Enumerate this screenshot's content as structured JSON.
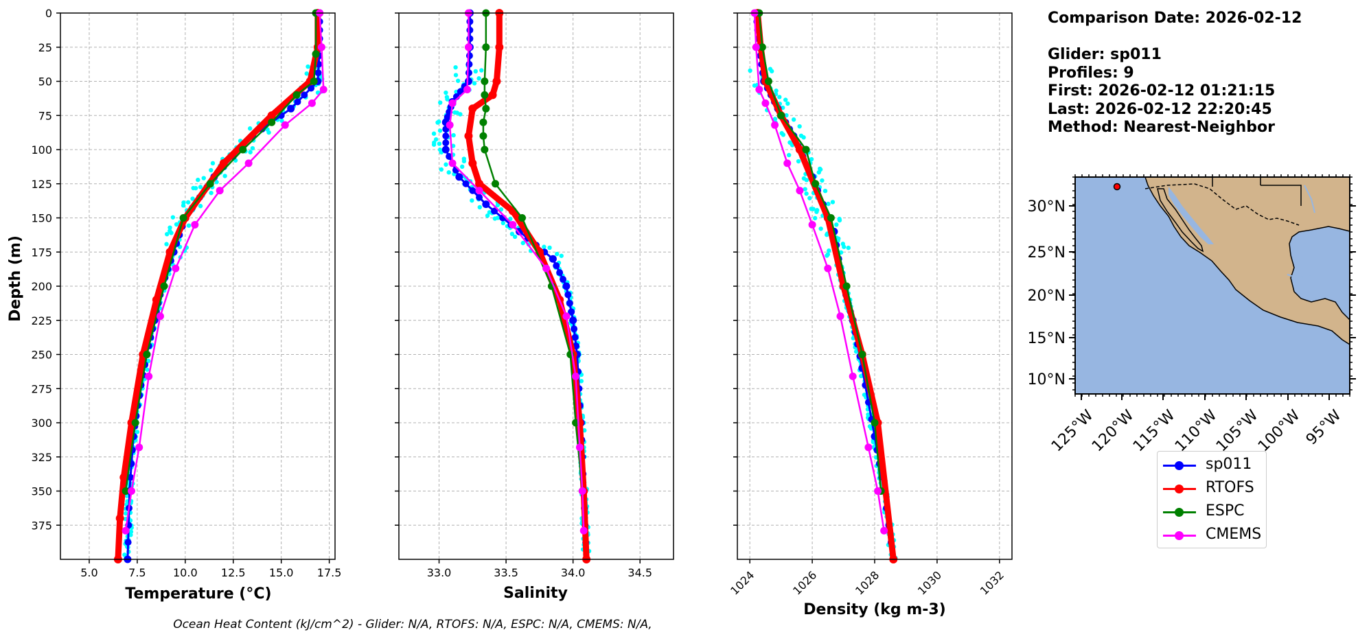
{
  "info": {
    "line1": "Comparison Date: 2026-02-12",
    "line2": "Glider: sp011",
    "line3": "Profiles: 9",
    "line4": "First: 2026-02-12 01:21:15",
    "line5": "Last: 2026-02-12 22:20:45",
    "line6": "Method: Nearest-Neighbor"
  },
  "footer": "Ocean Heat Content (kJ/cm^2) - Glider: N/A,  RTOFS: N/A,  ESPC: N/A,  CMEMS: N/A,",
  "legend": [
    {
      "name": "sp011",
      "color": "#0000ff"
    },
    {
      "name": "RTOFS",
      "color": "#ff0000"
    },
    {
      "name": "ESPC",
      "color": "#008000"
    },
    {
      "name": "CMEMS",
      "color": "#ff00ff"
    }
  ],
  "map": {
    "lat_ticks": [
      "30°N",
      "25°N",
      "20°N",
      "15°N",
      "10°N"
    ],
    "lon_ticks": [
      "125°W",
      "120°W",
      "115°W",
      "110°W",
      "105°W",
      "100°W",
      "95°W"
    ],
    "ocean_color": "#97b6e1",
    "land_color": "#d2b48c",
    "glider_marker_color": "#ff0000"
  },
  "chart_data": [
    {
      "type": "line",
      "xlabel": "Temperature (°C)",
      "ylabel": "Depth (m)",
      "xlim": [
        3.5,
        17.8
      ],
      "ylim": [
        400,
        0
      ],
      "xticks": [
        "5.0",
        "7.5",
        "10.0",
        "12.5",
        "15.0",
        "17.5"
      ],
      "yticks": [
        "0",
        "25",
        "50",
        "75",
        "100",
        "125",
        "150",
        "175",
        "200",
        "225",
        "250",
        "275",
        "300",
        "325",
        "350",
        "375"
      ],
      "grid": true,
      "series": [
        {
          "name": "sp011",
          "color": "#0000ff",
          "x": [
            17.0,
            17.0,
            16.9,
            15.5,
            13.5,
            11.5,
            10.0,
            9.4,
            8.8,
            8.4,
            8.0,
            7.6,
            7.3,
            7.1,
            7.0
          ],
          "y": [
            0,
            25,
            50,
            70,
            90,
            120,
            150,
            175,
            200,
            225,
            250,
            280,
            310,
            350,
            400
          ]
        },
        {
          "name": "RTOFS",
          "color": "#ff0000",
          "x": [
            16.9,
            16.9,
            16.5,
            14.5,
            12.0,
            10.0,
            9.2,
            8.5,
            7.8,
            7.2,
            6.8,
            6.6,
            6.5
          ],
          "y": [
            0,
            25,
            50,
            75,
            110,
            150,
            175,
            210,
            250,
            300,
            340,
            370,
            400
          ]
        },
        {
          "name": "ESPC",
          "color": "#008000",
          "x": [
            16.8,
            16.8,
            16.7,
            15.8,
            14.5,
            13.0,
            11.3,
            9.9,
            8.9,
            8.0,
            7.4,
            6.9
          ],
          "y": [
            0,
            30,
            50,
            60,
            80,
            100,
            125,
            150,
            200,
            250,
            300,
            350
          ]
        },
        {
          "name": "CMEMS",
          "color": "#ff00ff",
          "x": [
            17.0,
            17.1,
            17.2,
            16.6,
            15.2,
            13.3,
            11.8,
            10.5,
            9.5,
            8.7,
            8.1,
            7.6,
            7.2,
            6.9
          ],
          "y": [
            0,
            25,
            56,
            66,
            82,
            110,
            130,
            155,
            187,
            222,
            266,
            318,
            350,
            379
          ]
        }
      ]
    },
    {
      "type": "line",
      "xlabel": "Salinity",
      "ylabel": "",
      "xlim": [
        32.7,
        34.75
      ],
      "ylim": [
        400,
        0
      ],
      "xticks": [
        "33.0",
        "33.5",
        "34.0",
        "34.5"
      ],
      "grid": true,
      "series": [
        {
          "name": "sp011",
          "color": "#0000ff",
          "x": [
            33.23,
            33.23,
            33.22,
            33.1,
            33.05,
            33.05,
            33.15,
            33.35,
            33.6,
            33.85,
            33.95,
            34.0,
            34.03,
            34.06,
            34.08,
            34.1
          ],
          "y": [
            0,
            25,
            50,
            65,
            80,
            100,
            120,
            140,
            160,
            180,
            200,
            225,
            250,
            300,
            350,
            400
          ]
        },
        {
          "name": "RTOFS",
          "color": "#ff0000",
          "x": [
            33.45,
            33.45,
            33.43,
            33.4,
            33.25,
            33.22,
            33.25,
            33.3,
            33.55,
            33.75,
            33.9,
            34.0,
            34.05,
            34.08,
            34.1
          ],
          "y": [
            0,
            25,
            50,
            60,
            70,
            90,
            110,
            125,
            145,
            175,
            210,
            250,
            300,
            350,
            400
          ]
        },
        {
          "name": "ESPC",
          "color": "#008000",
          "x": [
            33.35,
            33.35,
            33.34,
            33.34,
            33.35,
            33.33,
            33.33,
            33.34,
            33.42,
            33.62,
            33.84,
            33.98,
            34.02,
            34.07
          ],
          "y": [
            0,
            25,
            50,
            60,
            70,
            80,
            90,
            100,
            125,
            150,
            200,
            250,
            300,
            350
          ]
        },
        {
          "name": "CMEMS",
          "color": "#ff00ff",
          "x": [
            33.22,
            33.22,
            33.21,
            33.1,
            33.08,
            33.1,
            33.3,
            33.55,
            33.8,
            33.95,
            34.02,
            34.05,
            34.07,
            34.08
          ],
          "y": [
            0,
            25,
            56,
            66,
            82,
            110,
            130,
            155,
            187,
            222,
            266,
            318,
            350,
            379
          ]
        }
      ]
    },
    {
      "type": "line",
      "xlabel": "Density (kg m-3)",
      "ylabel": "",
      "xlim": [
        1023.6,
        1032.4
      ],
      "ylim": [
        400,
        0
      ],
      "xticks": [
        "1024",
        "1026",
        "1028",
        "1030",
        "1032"
      ],
      "grid": true,
      "series": [
        {
          "name": "sp011",
          "color": "#0000ff",
          "x": [
            1024.2,
            1024.3,
            1024.45,
            1024.9,
            1025.4,
            1026.0,
            1026.7,
            1027.0,
            1027.3,
            1027.6,
            1028.0,
            1028.3,
            1028.6
          ],
          "y": [
            0,
            25,
            50,
            70,
            90,
            120,
            160,
            200,
            225,
            260,
            310,
            350,
            400
          ]
        },
        {
          "name": "RTOFS",
          "color": "#ff0000",
          "x": [
            1024.25,
            1024.35,
            1024.5,
            1025.0,
            1025.6,
            1026.5,
            1027.0,
            1027.6,
            1028.1,
            1028.6
          ],
          "y": [
            0,
            25,
            50,
            75,
            100,
            150,
            200,
            250,
            300,
            400
          ]
        },
        {
          "name": "ESPC",
          "color": "#008000",
          "x": [
            1024.3,
            1024.4,
            1024.6,
            1025.0,
            1025.8,
            1026.1,
            1026.6,
            1027.1,
            1027.6,
            1028.0,
            1028.2
          ],
          "y": [
            0,
            25,
            50,
            75,
            100,
            125,
            150,
            200,
            250,
            300,
            350
          ]
        },
        {
          "name": "CMEMS",
          "color": "#ff00ff",
          "x": [
            1024.15,
            1024.2,
            1024.3,
            1024.5,
            1024.8,
            1025.2,
            1025.6,
            1026.0,
            1026.5,
            1026.9,
            1027.3,
            1027.8,
            1028.1,
            1028.3
          ],
          "y": [
            0,
            25,
            56,
            66,
            82,
            110,
            130,
            155,
            187,
            222,
            266,
            318,
            350,
            379
          ]
        }
      ]
    }
  ]
}
